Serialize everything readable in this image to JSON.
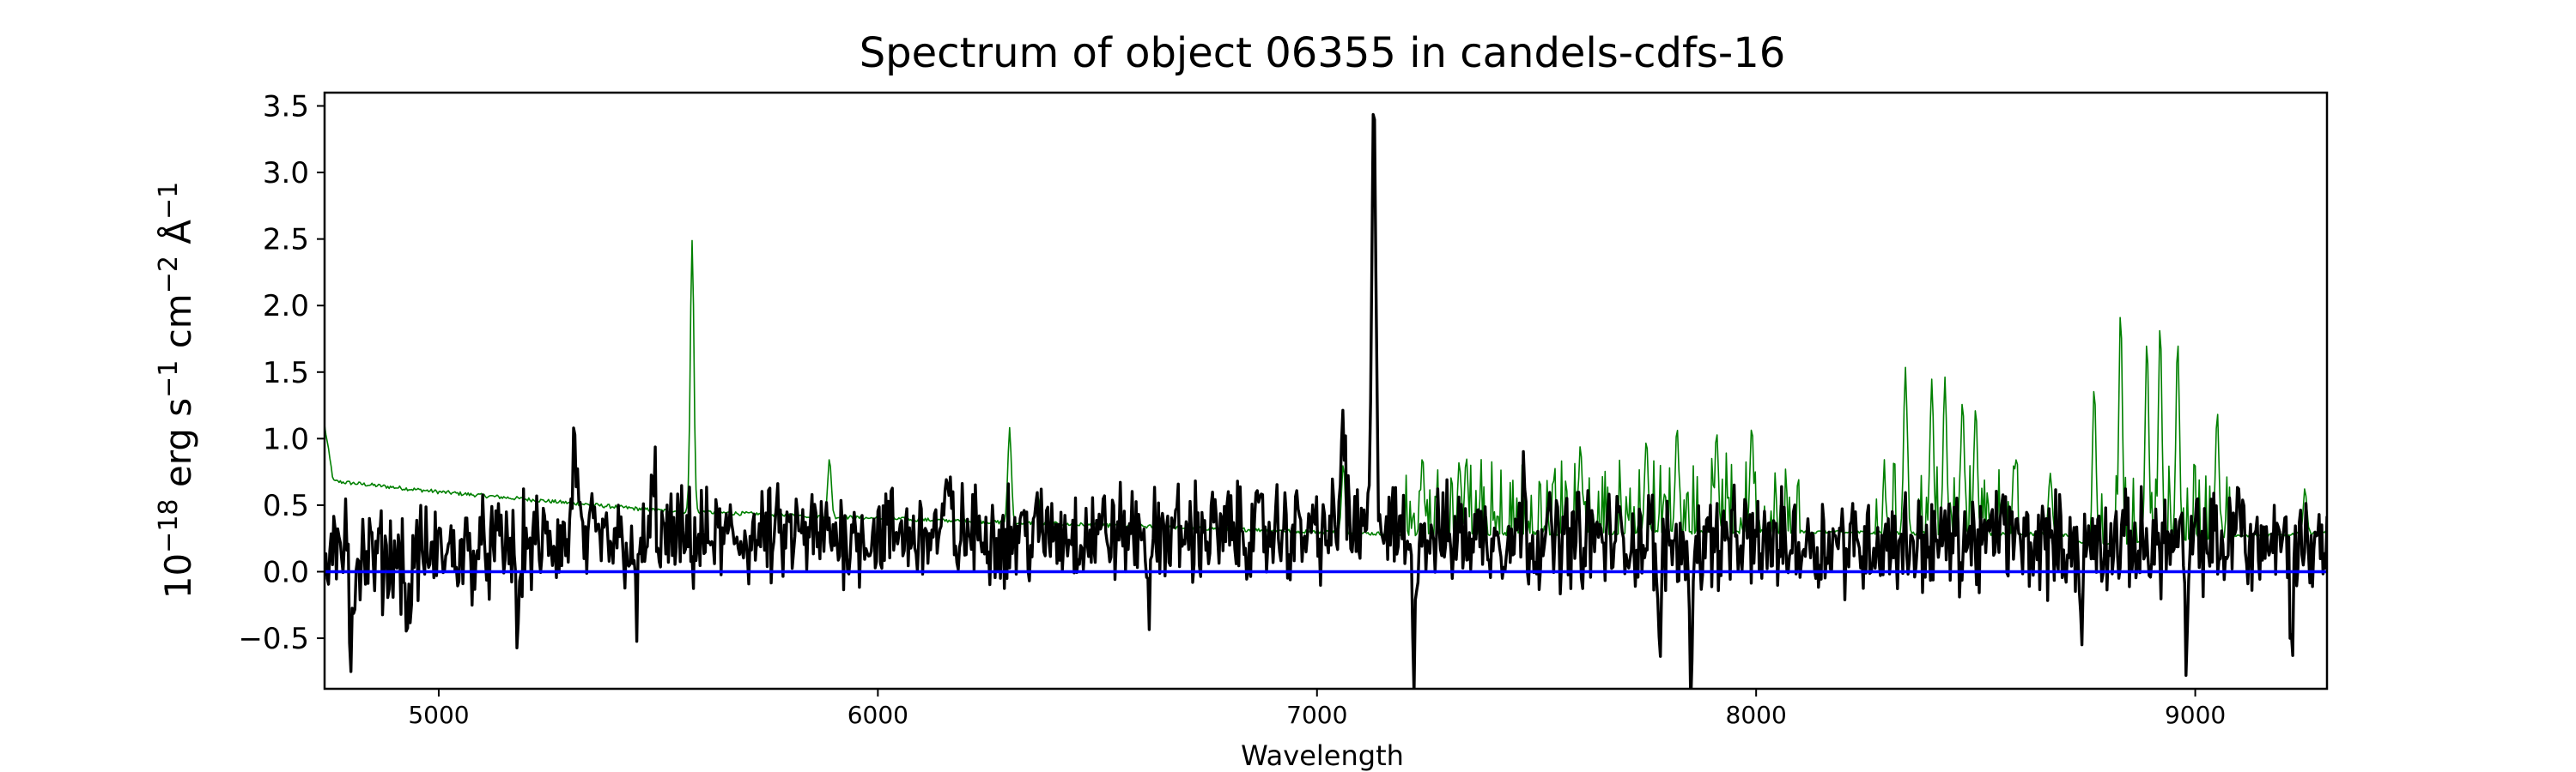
{
  "chart_data": {
    "type": "line",
    "title": "Spectrum of object 06355 in candels-cdfs-16",
    "xlabel": "Wavelength",
    "ylabel_parts": {
      "base": "10",
      "base_exp": "−18",
      "erg": " erg s",
      "s_exp": "−1",
      "cm": " cm",
      "cm_exp": "−2",
      "ang": " Å",
      "ang_exp": "−1"
    },
    "xlim": [
      4740,
      9300
    ],
    "ylim": [
      -0.88,
      3.6
    ],
    "x_ticks": [
      5000,
      6000,
      7000,
      8000,
      9000
    ],
    "x_tick_labels": [
      "5000",
      "6000",
      "7000",
      "8000",
      "9000"
    ],
    "y_ticks": [
      -0.5,
      0.0,
      0.5,
      1.0,
      1.5,
      2.0,
      2.5,
      3.0,
      3.5
    ],
    "y_tick_labels": [
      "−0.5",
      "0.0",
      "0.5",
      "1.0",
      "1.5",
      "2.0",
      "2.5",
      "3.0",
      "3.5"
    ],
    "grid": false,
    "series": [
      {
        "color": "#008000",
        "kind": "sky_noise",
        "continuum": [
          [
            4740,
            1.1
          ],
          [
            4760,
            0.68
          ],
          [
            5000,
            0.6
          ],
          [
            5500,
            0.46
          ],
          [
            6000,
            0.4
          ],
          [
            6500,
            0.35
          ],
          [
            7000,
            0.3
          ],
          [
            7200,
            0.28
          ],
          [
            8000,
            0.3
          ],
          [
            8700,
            0.28
          ],
          [
            8750,
            0.2
          ],
          [
            9300,
            0.3
          ]
        ],
        "peaks": [
          [
            5577,
            2.5
          ],
          [
            5890,
            0.85
          ],
          [
            6300,
            1.08
          ],
          [
            6363,
            0.6
          ],
          [
            7060,
            0.8
          ],
          [
            7240,
            0.85
          ],
          [
            7340,
            0.85
          ],
          [
            7600,
            0.95
          ],
          [
            7750,
            1.0
          ],
          [
            7820,
            1.1
          ],
          [
            7910,
            1.05
          ],
          [
            7990,
            1.1
          ],
          [
            8340,
            1.55
          ],
          [
            8400,
            1.45
          ],
          [
            8430,
            1.45
          ],
          [
            8470,
            1.3
          ],
          [
            8500,
            1.25
          ],
          [
            8670,
            0.75
          ],
          [
            8770,
            1.4
          ],
          [
            8830,
            1.95
          ],
          [
            8890,
            1.75
          ],
          [
            8920,
            1.85
          ],
          [
            8960,
            1.75
          ],
          [
            9050,
            1.2
          ],
          [
            9250,
            0.62
          ]
        ]
      },
      {
        "color": "#000000",
        "kind": "object_flux",
        "continuum": [
          [
            4740,
            0.05
          ],
          [
            5200,
            0.2
          ],
          [
            6000,
            0.28
          ],
          [
            7000,
            0.3
          ],
          [
            8000,
            0.22
          ],
          [
            9300,
            0.22
          ]
        ],
        "peaks": [
          [
            4790,
            0.55
          ],
          [
            5310,
            1.05
          ],
          [
            5490,
            0.65
          ],
          [
            6160,
            0.6
          ],
          [
            7060,
            1.2
          ],
          [
            7130,
            3.4
          ],
          [
            7470,
            0.55
          ],
          [
            8560,
            0.6
          ],
          [
            9100,
            0.6
          ]
        ],
        "dips": [
          [
            4800,
            -0.65
          ],
          [
            4930,
            -0.5
          ],
          [
            5180,
            -0.45
          ],
          [
            5450,
            -0.45
          ],
          [
            6620,
            -0.3
          ],
          [
            7220,
            -0.55
          ],
          [
            7780,
            -0.7
          ],
          [
            7850,
            -0.7
          ],
          [
            8740,
            -0.5
          ],
          [
            8980,
            -0.65
          ],
          [
            9220,
            -0.45
          ]
        ]
      },
      {
        "color": "#0000ff",
        "kind": "zero_line",
        "y": 0.0
      }
    ]
  }
}
